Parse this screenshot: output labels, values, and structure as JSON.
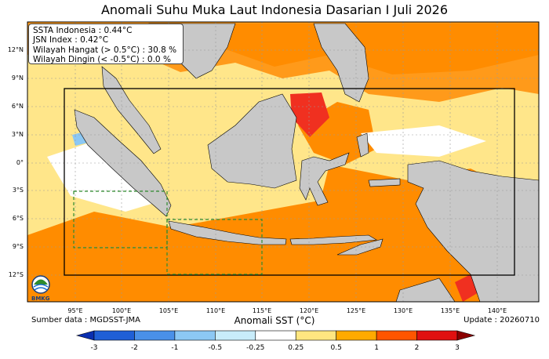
{
  "title": "Anomali Suhu Muka Laut Indonesia Dasarian I Juli 2026",
  "stats": {
    "ssta": "SSTA Indonesia : 0.44°C",
    "jsn": "JSN Index      : 0.42°C",
    "warm": "Wilayah Hangat (> 0.5°C) : 30.8 %",
    "cold": "Wilayah Dingin (< -0.5°C) : 0.0 %"
  },
  "lat_labels": [
    "12°N",
    "9°N",
    "6°N",
    "3°N",
    "0°",
    "3°S",
    "6°S",
    "9°S",
    "12°S"
  ],
  "lon_labels": [
    "95°E",
    "100°E",
    "105°E",
    "110°E",
    "115°E",
    "120°E",
    "125°E",
    "130°E",
    "135°E",
    "140°E"
  ],
  "source": "Sumber data : MGDSST-JMA",
  "update": "Update : 20260710",
  "logo_text": "BMKG",
  "colorbar": {
    "title": "Anomali SST (°C)",
    "ticks": [
      "-3",
      "-2",
      "-1",
      "-0.5",
      "-0.25",
      "0.25",
      "0.5",
      "1",
      "2",
      "3"
    ],
    "colors": [
      "#0a2fb0",
      "#1f5fd6",
      "#4a90e8",
      "#8cc8f4",
      "#c8ecfa",
      "#ffffff",
      "#ffe680",
      "#ffaa00",
      "#ff5500",
      "#e01010",
      "#8b0000"
    ]
  },
  "colors": {
    "land": "#c8c8c8",
    "ocean_warm": "#ff8c00",
    "ocean_mild": "#ffe68a",
    "ocean_hot": "#f03020",
    "box_main": "#000000",
    "box_dashed": "#2e8b2e"
  }
}
